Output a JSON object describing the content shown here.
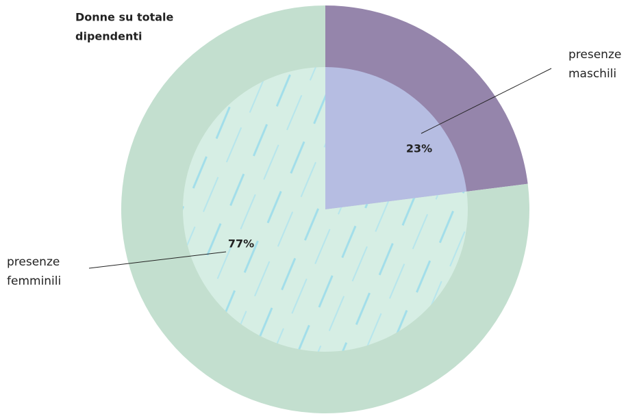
{
  "chart_data": {
    "type": "pie",
    "title": [
      "Donne su totale",
      "dipendenti"
    ],
    "categories": [
      [
        "presenze",
        "maschili"
      ],
      [
        "presenze",
        "femminili"
      ]
    ],
    "values": [
      23,
      77
    ],
    "value_labels": [
      "23%",
      "77%"
    ],
    "colors": [
      "#9585ab",
      "#c3dfcf"
    ],
    "inner_colors": [
      "#b6bde2",
      "#d6eee4"
    ]
  }
}
